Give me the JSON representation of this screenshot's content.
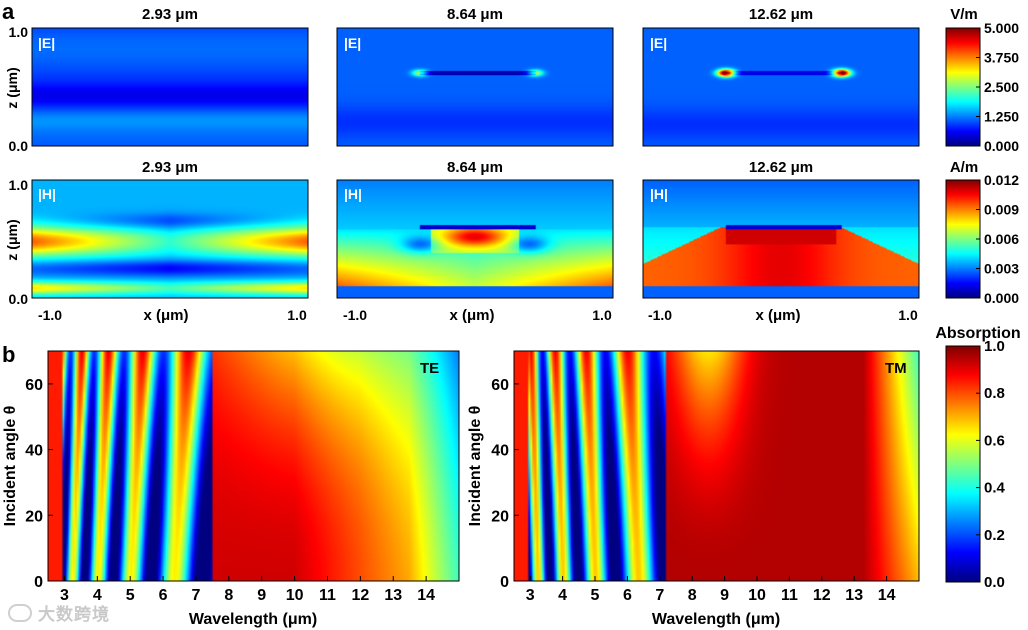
{
  "panel_labels": {
    "a": "a",
    "b": "b"
  },
  "colors": {
    "jet": [
      "#00007f",
      "#0000ff",
      "#007fff",
      "#00ffff",
      "#7fff7f",
      "#ffff00",
      "#ff7f00",
      "#ff0000",
      "#7f0000"
    ]
  },
  "chart_data": [
    {
      "type": "heatmap",
      "title": "2.93 μm",
      "field_label": "|E|",
      "xlabel": "",
      "ylabel": "z (μm)",
      "xlim": [
        -1.0,
        1.0
      ],
      "ylim": [
        0.0,
        1.0
      ],
      "yticks": [
        "1.0",
        "0.0"
      ],
      "pattern": "e_low"
    },
    {
      "type": "heatmap",
      "title": "8.64 μm",
      "field_label": "|E|",
      "xlim": [
        -1.0,
        1.0
      ],
      "ylim": [
        0.0,
        1.0
      ],
      "pattern": "e_mid"
    },
    {
      "type": "heatmap",
      "title": "12.62 μm",
      "field_label": "|E|",
      "xlim": [
        -1.0,
        1.0
      ],
      "ylim": [
        0.0,
        1.0
      ],
      "pattern": "e_high"
    },
    {
      "type": "heatmap",
      "title": "2.93 μm",
      "field_label": "|H|",
      "xlabel": "x (μm)",
      "ylabel": "z (μm)",
      "xlim": [
        -1.0,
        1.0
      ],
      "ylim": [
        0.0,
        1.0
      ],
      "xticks": [
        "-1.0",
        "1.0"
      ],
      "yticks": [
        "1.0",
        "0.0"
      ],
      "pattern": "h_low"
    },
    {
      "type": "heatmap",
      "title": "8.64 μm",
      "field_label": "|H|",
      "xlabel": "x (μm)",
      "xlim": [
        -1.0,
        1.0
      ],
      "ylim": [
        0.0,
        1.0
      ],
      "xticks": [
        "-1.0",
        "1.0"
      ],
      "pattern": "h_mid"
    },
    {
      "type": "heatmap",
      "title": "12.62 μm",
      "field_label": "|H|",
      "xlabel": "x (μm)",
      "xlim": [
        -1.0,
        1.0
      ],
      "ylim": [
        0.0,
        1.0
      ],
      "xticks": [
        "-1.0",
        "1.0"
      ],
      "pattern": "h_high"
    },
    {
      "type": "heatmap",
      "title": "",
      "corner_label": "TE",
      "xlabel": "Wavelength (μm)",
      "ylabel": "Incident angle θ",
      "xlim": [
        2.5,
        15.0
      ],
      "ylim": [
        0,
        70
      ],
      "xticks": [
        3,
        4,
        5,
        6,
        7,
        8,
        9,
        10,
        11,
        12,
        13,
        14
      ],
      "yticks": [
        0,
        20,
        40,
        60
      ],
      "pattern": "abs_te"
    },
    {
      "type": "heatmap",
      "title": "",
      "corner_label": "TM",
      "xlabel": "Wavelength (μm)",
      "ylabel": "Incident angle θ",
      "xlim": [
        2.5,
        15.0
      ],
      "ylim": [
        0,
        70
      ],
      "xticks": [
        3,
        4,
        5,
        6,
        7,
        8,
        9,
        10,
        11,
        12,
        13,
        14
      ],
      "yticks": [
        0,
        20,
        40,
        60
      ],
      "pattern": "abs_tm"
    }
  ],
  "colorbars": [
    {
      "unit": "V/m",
      "ticks": [
        "5.000",
        "3.750",
        "2.500",
        "1.250",
        "0.000"
      ],
      "range": [
        0,
        5
      ]
    },
    {
      "unit": "A/m",
      "ticks": [
        "0.012",
        "0.009",
        "0.006",
        "0.003",
        "0.000"
      ],
      "range": [
        0,
        0.012
      ]
    },
    {
      "unit": "Absorption",
      "ticks": [
        "1.0",
        "0.8",
        "0.6",
        "0.4",
        "0.2",
        "0.0"
      ],
      "range": [
        0,
        1
      ]
    }
  ],
  "watermark": "大数跨境"
}
